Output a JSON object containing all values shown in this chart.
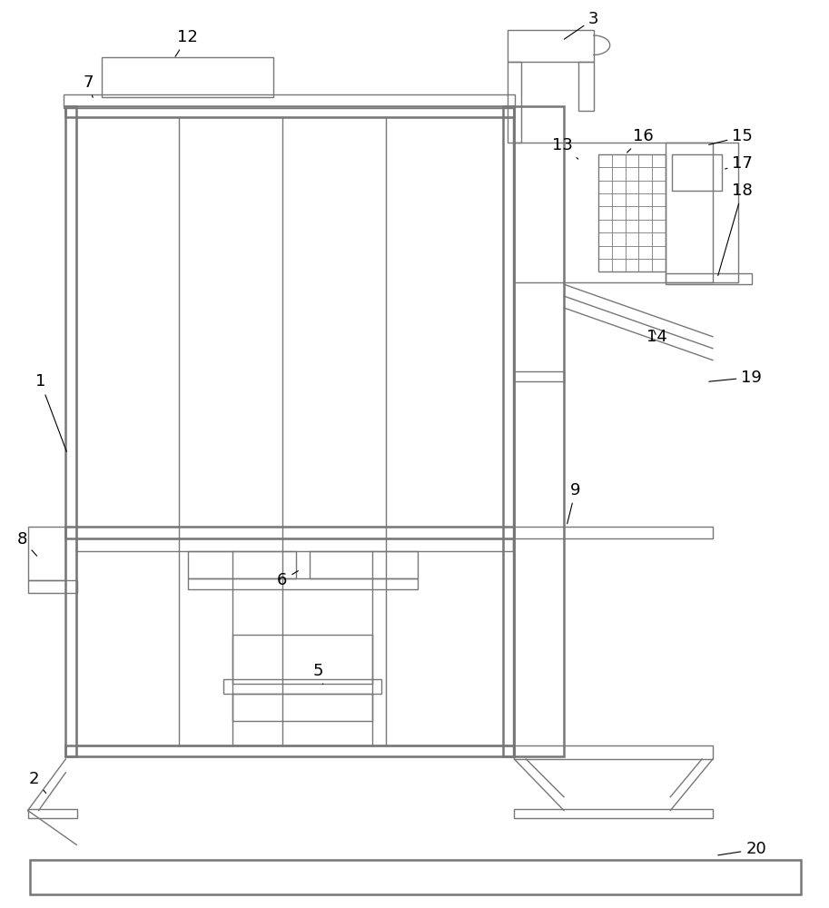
{
  "bg_color": "#ffffff",
  "lc": "#777777",
  "lw": 1.0,
  "tlw": 1.8
}
